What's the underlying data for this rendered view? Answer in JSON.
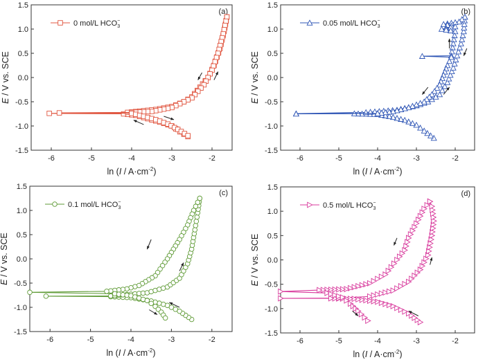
{
  "chart_data": [
    {
      "type": "line",
      "panel_label": "(a)",
      "color": "#e0553f",
      "marker": "square",
      "legend": {
        "text": "0 mol/L HCO",
        "sub": "3",
        "sup": "−",
        "placement": "top-left"
      },
      "xlabel": {
        "pre": "ln (",
        "ital": "I",
        "post": " / A·cm",
        "sup": "-2",
        "end": ")"
      },
      "ylabel": {
        "ital": "E",
        "post": " / V vs. SCE"
      },
      "xlim": [
        -6.5,
        -1.5
      ],
      "ylim": [
        -1.5,
        1.5
      ],
      "xticks": [
        -6,
        -5,
        -4,
        -3,
        -2
      ],
      "yticks": [
        -1.5,
        -1.0,
        -0.5,
        0.0,
        0.5,
        1.0,
        1.5
      ],
      "ytick_labels": [
        "-1.5",
        "-1.0",
        "-0.5",
        "0.0",
        "0.5",
        "1.0",
        "1.5"
      ],
      "series": [
        {
          "points": [
            [
              -2.6,
              -1.22
            ],
            [
              -2.8,
              -1.12
            ],
            [
              -3.0,
              -1.0
            ],
            [
              -3.3,
              -0.92
            ],
            [
              -3.6,
              -0.85
            ],
            [
              -3.9,
              -0.78
            ],
            [
              -4.2,
              -0.75
            ],
            [
              -6.05,
              -0.74
            ],
            [
              -4.1,
              -0.72
            ],
            [
              -3.4,
              -0.66
            ],
            [
              -3.0,
              -0.6
            ],
            [
              -2.7,
              -0.5
            ],
            [
              -2.5,
              -0.4
            ],
            [
              -2.3,
              -0.2
            ],
            [
              -2.1,
              0.0
            ],
            [
              -1.95,
              0.25
            ],
            [
              -1.8,
              0.6
            ],
            [
              -1.7,
              0.95
            ],
            [
              -1.63,
              1.25
            ]
          ]
        },
        {
          "points": [
            [
              -1.63,
              1.25
            ],
            [
              -1.72,
              0.9
            ],
            [
              -1.85,
              0.5
            ],
            [
              -2.0,
              0.15
            ],
            [
              -2.2,
              -0.15
            ],
            [
              -2.5,
              -0.42
            ],
            [
              -3.0,
              -0.62
            ],
            [
              -3.5,
              -0.7
            ],
            [
              -4.0,
              -0.72
            ],
            [
              -5.8,
              -0.73
            ],
            [
              -4.0,
              -0.74
            ],
            [
              -3.7,
              -0.8
            ],
            [
              -3.4,
              -0.87
            ],
            [
              -3.1,
              -0.96
            ],
            [
              -2.85,
              -1.07
            ],
            [
              -2.6,
              -1.2
            ]
          ]
        }
      ],
      "arrows": [
        [
          -2.25,
          0.1,
          -2.35,
          -0.05
        ],
        [
          -1.95,
          -0.05,
          -1.85,
          0.12
        ],
        [
          -3.7,
          -0.97,
          -3.95,
          -0.88
        ],
        [
          -3.2,
          -0.8,
          -2.95,
          -0.87
        ]
      ]
    },
    {
      "type": "line",
      "panel_label": "(b)",
      "color": "#2e55b5",
      "marker": "triangle-up",
      "legend": {
        "text": "0.05 mol/L HCO",
        "sub": "3",
        "sup": "−",
        "placement": "top-left"
      },
      "xlabel": {
        "pre": "ln (",
        "ital": "I",
        "post": " / A·cm",
        "sup": "-2",
        "end": ")"
      },
      "ylabel": {
        "ital": "E",
        "post": " / V vs. SCE"
      },
      "xlim": [
        -6.5,
        -1.5
      ],
      "ylim": [
        -1.5,
        1.5
      ],
      "xticks": [
        -6,
        -5,
        -4,
        -3,
        -2
      ],
      "yticks": [
        -1.5,
        -1.0,
        -0.5,
        0.0,
        0.5,
        1.0,
        1.5
      ],
      "ytick_labels": [
        "-1.5",
        "-1.0",
        "-0.5",
        "0.0",
        "0.5",
        "1.0",
        "1.5"
      ],
      "series": [
        {
          "points": [
            [
              -2.55,
              -1.25
            ],
            [
              -2.8,
              -1.1
            ],
            [
              -3.0,
              -0.98
            ],
            [
              -3.3,
              -0.88
            ],
            [
              -3.7,
              -0.8
            ],
            [
              -4.0,
              -0.76
            ],
            [
              -4.6,
              -0.745
            ],
            [
              -6.1,
              -0.745
            ],
            [
              -4.3,
              -0.72
            ],
            [
              -3.5,
              -0.67
            ],
            [
              -3.0,
              -0.58
            ],
            [
              -2.7,
              -0.5
            ],
            [
              -2.4,
              -0.35
            ],
            [
              -2.2,
              -0.1
            ],
            [
              -2.05,
              0.2
            ],
            [
              -1.95,
              0.45
            ],
            [
              -1.85,
              0.7
            ],
            [
              -1.78,
              0.95
            ],
            [
              -1.75,
              1.25
            ]
          ]
        },
        {
          "points": [
            [
              -1.75,
              1.25
            ],
            [
              -1.9,
              1.15
            ],
            [
              -2.3,
              1.1
            ],
            [
              -2.0,
              1.05
            ],
            [
              -2.35,
              1.0
            ],
            [
              -2.0,
              0.95
            ],
            [
              -2.05,
              0.7
            ],
            [
              -2.1,
              0.45
            ],
            [
              -2.85,
              0.44
            ],
            [
              -2.1,
              0.42
            ],
            [
              -2.2,
              0.25
            ],
            [
              -2.3,
              0.05
            ],
            [
              -2.4,
              -0.15
            ],
            [
              -2.6,
              -0.35
            ],
            [
              -2.8,
              -0.5
            ],
            [
              -3.2,
              -0.62
            ],
            [
              -3.6,
              -0.7
            ],
            [
              -4.0,
              -0.74
            ],
            [
              -6.1,
              -0.75
            ]
          ]
        }
      ],
      "arrows": [
        [
          -2.15,
          0.6,
          -2.15,
          0.8
        ],
        [
          -1.7,
          0.6,
          -1.78,
          0.45
        ],
        [
          -2.7,
          -0.2,
          -2.85,
          -0.35
        ],
        [
          -2.3,
          -0.35,
          -2.15,
          -0.2
        ]
      ]
    },
    {
      "type": "line",
      "panel_label": "(c)",
      "color": "#5e9a35",
      "marker": "circle",
      "legend": {
        "text": "0.1 mol/L HCO",
        "sub": "3",
        "sup": "−",
        "placement": "top-left"
      },
      "xlabel": {
        "pre": "ln (",
        "ital": "I",
        "post": " / A·cm",
        "sup": "-2",
        "end": ")"
      },
      "ylabel": {
        "ital": "E",
        "post": " / V vs. SCE"
      },
      "xlim": [
        -6.5,
        -1.5
      ],
      "ylim": [
        -1.5,
        1.5
      ],
      "xticks": [
        -6,
        -5,
        -4,
        -3,
        -2
      ],
      "yticks": [
        -1.5,
        -1.0,
        -0.5,
        0.0,
        0.5,
        1.0,
        1.5
      ],
      "ytick_labels": [
        "-1.5",
        "-1.0",
        "-0.5",
        "0.0",
        "0.5",
        "1.0",
        "1.5"
      ],
      "series": [
        {
          "points": [
            [
              -2.5,
              -1.25
            ],
            [
              -2.8,
              -1.08
            ],
            [
              -3.1,
              -0.96
            ],
            [
              -3.5,
              -0.87
            ],
            [
              -4.0,
              -0.8
            ],
            [
              -4.5,
              -0.78
            ],
            [
              -6.1,
              -0.77
            ],
            [
              -4.5,
              -0.765
            ],
            [
              -3.6,
              -0.7
            ],
            [
              -3.1,
              -0.58
            ],
            [
              -2.8,
              -0.4
            ],
            [
              -2.6,
              -0.1
            ],
            [
              -2.5,
              0.2
            ],
            [
              -2.42,
              0.6
            ],
            [
              -2.35,
              0.95
            ],
            [
              -2.3,
              1.25
            ]
          ]
        },
        {
          "points": [
            [
              -2.3,
              1.25
            ],
            [
              -2.45,
              1.0
            ],
            [
              -2.6,
              0.7
            ],
            [
              -2.8,
              0.4
            ],
            [
              -3.1,
              0.0
            ],
            [
              -3.4,
              -0.35
            ],
            [
              -3.8,
              -0.55
            ],
            [
              -4.1,
              -0.62
            ],
            [
              -4.6,
              -0.67
            ],
            [
              -6.5,
              -0.69
            ],
            [
              -4.4,
              -0.72
            ],
            [
              -4.0,
              -0.76
            ],
            [
              -3.6,
              -0.86
            ],
            [
              -3.4,
              -0.98
            ],
            [
              -3.25,
              -1.1
            ],
            [
              -3.15,
              -1.22
            ]
          ]
        }
      ],
      "arrows": [
        [
          -3.5,
          0.4,
          -3.6,
          0.2
        ],
        [
          -2.8,
          -0.25,
          -2.7,
          -0.08
        ],
        [
          -2.8,
          -1.0,
          -3.05,
          -0.9
        ],
        [
          -3.55,
          -1.05,
          -3.35,
          -1.15
        ]
      ]
    },
    {
      "type": "line",
      "panel_label": "(d)",
      "color": "#d8399c",
      "marker": "triangle-right",
      "legend": {
        "text": "0.5 mol/L HCO",
        "sub": "3",
        "sup": "−",
        "placement": "top-left"
      },
      "xlabel": {
        "pre": "ln (",
        "ital": "I",
        "post": " / A·cm",
        "sup": "-2",
        "end": ")"
      },
      "ylabel": {
        "ital": "E",
        "post": " / V vs. SCE"
      },
      "xlim": [
        -6.5,
        -1.5
      ],
      "ylim": [
        -1.5,
        1.5
      ],
      "xticks": [
        -6,
        -5,
        -4,
        -3,
        -2
      ],
      "yticks": [
        -1.5,
        -1.0,
        -0.5,
        0.0,
        0.5,
        1.0,
        1.5
      ],
      "ytick_labels": [
        "-1.5",
        "-1.0",
        "-0.5",
        "0.0",
        "0.5",
        "1.0",
        "1.5"
      ],
      "series": [
        {
          "points": [
            [
              -2.9,
              -1.28
            ],
            [
              -3.2,
              -1.1
            ],
            [
              -3.6,
              -0.95
            ],
            [
              -4.0,
              -0.86
            ],
            [
              -4.6,
              -0.8
            ],
            [
              -5.2,
              -0.79
            ],
            [
              -6.5,
              -0.79
            ],
            [
              -5.0,
              -0.785
            ],
            [
              -4.2,
              -0.75
            ],
            [
              -3.6,
              -0.63
            ],
            [
              -3.2,
              -0.45
            ],
            [
              -2.9,
              -0.2
            ],
            [
              -2.7,
              0.1
            ],
            [
              -2.6,
              0.5
            ],
            [
              -2.55,
              0.8
            ],
            [
              -2.6,
              1.1
            ],
            [
              -2.65,
              1.2
            ]
          ]
        },
        {
          "points": [
            [
              -2.65,
              1.2
            ],
            [
              -2.8,
              1.05
            ],
            [
              -3.0,
              0.75
            ],
            [
              -3.2,
              0.45
            ],
            [
              -3.3,
              0.2
            ],
            [
              -3.5,
              0.0
            ],
            [
              -3.8,
              -0.3
            ],
            [
              -4.2,
              -0.48
            ],
            [
              -4.8,
              -0.6
            ],
            [
              -5.5,
              -0.62
            ],
            [
              -6.5,
              -0.65
            ],
            [
              -5.3,
              -0.68
            ],
            [
              -4.9,
              -0.77
            ],
            [
              -4.7,
              -0.9
            ],
            [
              -4.5,
              -1.05
            ],
            [
              -4.25,
              -1.25
            ]
          ]
        }
      ],
      "arrows": [
        [
          -3.5,
          0.45,
          -3.58,
          0.3
        ],
        [
          -2.65,
          -0.1,
          -2.6,
          0.05
        ],
        [
          -2.95,
          -1.15,
          -3.2,
          -1.05
        ],
        [
          -4.65,
          -1.05,
          -4.5,
          -1.15
        ]
      ]
    }
  ]
}
